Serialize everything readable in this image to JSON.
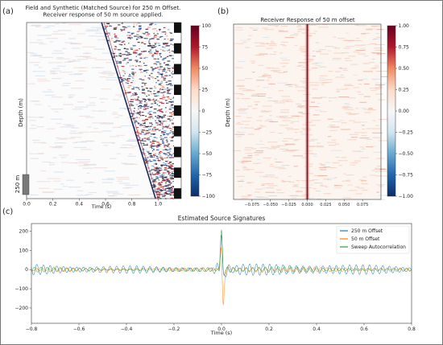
{
  "figure": {
    "panel_labels": [
      "(a)",
      "(b)",
      "(c)"
    ],
    "scale_bar_label": "250 m",
    "frame_color": "#777777"
  },
  "chart_data": [
    {
      "type": "heatmap",
      "panel": "(a)",
      "title": "Field and Synthetic (Matched Source) for 250 m Offset.\nReceiver response of 50 m source applied.",
      "xlabel": "Time (s)",
      "ylabel": "Depth (m)",
      "xlim": [
        0.0,
        1.12
      ],
      "x_ticks": [
        0.0,
        0.2,
        0.4,
        0.6,
        0.8,
        1.0
      ],
      "x_tick_labels": [
        "0.0",
        "0.2",
        "0.4",
        "0.6",
        "0.8",
        "1.0"
      ],
      "colorbar": {
        "range": [
          -100,
          100
        ],
        "ticks": [
          100,
          75,
          50,
          25,
          0,
          -25,
          -50,
          -75,
          -100
        ],
        "tick_labels": [
          "100",
          "75",
          "50",
          "25",
          "0",
          "−25",
          "−50",
          "−75",
          "−100"
        ],
        "colormap": [
          "#0b2d6b",
          "#2166ac",
          "#67a9cf",
          "#d1e5f0",
          "#f7f7f7",
          "#fddbc7",
          "#ef8a62",
          "#b2182b",
          "#67001f"
        ]
      },
      "first_arrival": {
        "start_time": 0.57,
        "end_time": 0.98,
        "description": "diagonal first-break moveout, early at top, late at bottom"
      },
      "checker_column": "alternating field/synthetic blocks on right edge",
      "grid": false
    },
    {
      "type": "heatmap",
      "panel": "(b)",
      "title": "Receiver Response of 50 m offset",
      "xlabel": "",
      "ylabel": "Depth (m)",
      "xlim": [
        -0.1,
        0.1
      ],
      "x_ticks": [
        -0.075,
        -0.05,
        -0.025,
        0.0,
        0.025,
        0.05,
        0.075
      ],
      "x_tick_labels": [
        "−0.075",
        "−0.050",
        "−0.025",
        "0.000",
        "0.025",
        "0.050",
        "0.075"
      ],
      "colorbar": {
        "range": [
          -1.0,
          1.0
        ],
        "ticks": [
          1.0,
          0.75,
          0.5,
          0.25,
          0.0,
          -0.25,
          -0.5,
          -0.75,
          -1.0
        ],
        "tick_labels": [
          "1.00",
          "0.75",
          "0.50",
          "0.25",
          "0.00",
          "−0.25",
          "−0.50",
          "−0.75",
          "−1.00"
        ],
        "colormap": [
          "#0b2d6b",
          "#2166ac",
          "#67a9cf",
          "#d1e5f0",
          "#f7f7f7",
          "#fddbc7",
          "#ef8a62",
          "#b2182b",
          "#67001f"
        ]
      },
      "spike_time": 0.0,
      "grid": false
    },
    {
      "type": "line",
      "panel": "(c)",
      "title": "Estimated Source Signatures",
      "xlabel": "Time (s)",
      "ylabel": "",
      "xlim": [
        -0.8,
        0.8
      ],
      "ylim": [
        -280,
        240
      ],
      "x_ticks": [
        -0.8,
        -0.6,
        -0.4,
        -0.2,
        0.0,
        0.2,
        0.4,
        0.6,
        0.8
      ],
      "x_tick_labels": [
        "−0.8",
        "−0.6",
        "−0.4",
        "−0.2",
        "0.0",
        "0.2",
        "0.4",
        "0.6",
        "0.8"
      ],
      "y_ticks": [
        200,
        100,
        0,
        -100,
        -200
      ],
      "y_tick_labels": [
        "200",
        "100",
        "0",
        "−100",
        "−200"
      ],
      "legend_position": "top-right",
      "grid": false,
      "series": [
        {
          "name": "250 m Offset",
          "color": "#1f77b4",
          "peak": 215,
          "trough": -95,
          "background_amplitude": 32,
          "period_s": 0.028
        },
        {
          "name": "50 m Offset",
          "color": "#ff7f0e",
          "peak": 180,
          "trough": -245,
          "background_amplitude": 12,
          "period_s": 0.026
        },
        {
          "name": "Sweep Autocorrelation",
          "color": "#2ca02c",
          "peak": 230,
          "trough": -60,
          "background_amplitude": 15,
          "period_s": 0.027
        }
      ]
    }
  ]
}
